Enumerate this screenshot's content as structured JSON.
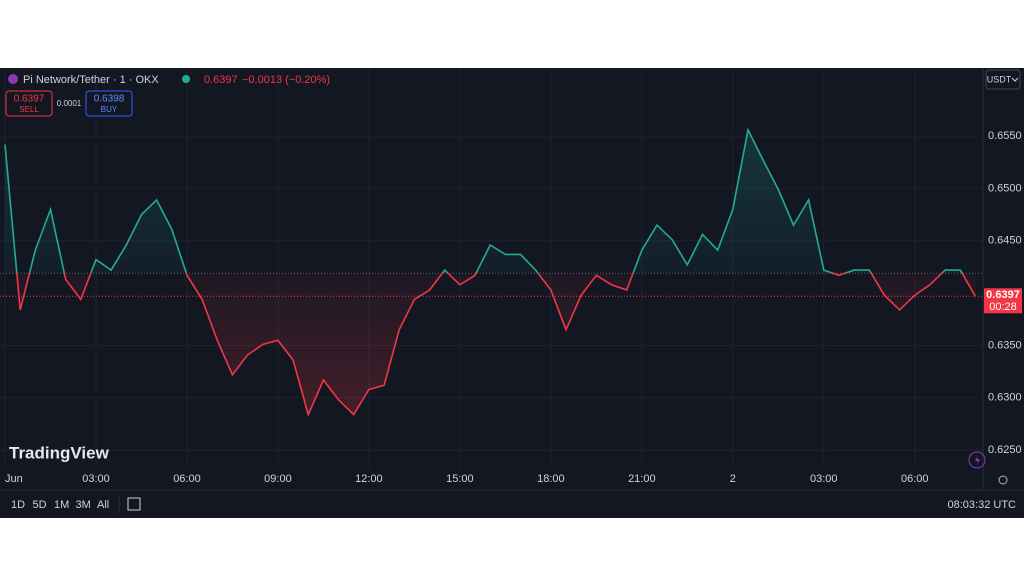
{
  "chart_data": {
    "type": "baseline",
    "up_color": "#22ab94",
    "down_color": "#f23645",
    "baseline": 0.6419,
    "x": [
      0,
      0.5,
      1,
      1.5,
      2,
      2.5,
      3,
      3.5,
      4,
      4.5,
      5,
      5.5,
      6,
      6.5,
      7,
      7.5,
      8,
      8.5,
      9,
      9.5,
      10,
      10.5,
      11,
      11.5,
      12,
      12.5,
      13,
      13.5,
      14,
      14.5,
      15,
      15.5,
      16,
      16.5,
      17,
      17.5,
      18,
      18.5,
      19,
      19.5,
      20,
      20.5,
      21,
      21.5,
      22,
      22.5,
      23,
      23.5,
      24,
      24.5,
      25,
      25.5,
      26,
      26.5,
      27,
      27.5,
      28,
      28.5,
      29,
      29.5,
      30,
      30.5,
      31,
      31.5,
      32
    ],
    "values": [
      0.6542,
      0.6384,
      0.6441,
      0.648,
      0.6413,
      0.6394,
      0.6432,
      0.6422,
      0.6446,
      0.6475,
      0.6489,
      0.6461,
      0.6417,
      0.6394,
      0.6355,
      0.6322,
      0.6341,
      0.6351,
      0.6355,
      0.6336,
      0.6284,
      0.6317,
      0.6298,
      0.6284,
      0.6308,
      0.6312,
      0.6365,
      0.6394,
      0.6403,
      0.6422,
      0.6408,
      0.6417,
      0.6446,
      0.6437,
      0.6437,
      0.6422,
      0.6403,
      0.6365,
      0.6398,
      0.6417,
      0.6408,
      0.6403,
      0.6441,
      0.6465,
      0.6451,
      0.6427,
      0.6456,
      0.6441,
      0.648,
      0.6556,
      0.6527,
      0.6499,
      0.6465,
      0.6489,
      0.6422,
      0.6417,
      0.6422,
      0.6422,
      0.6398,
      0.6384,
      0.6398,
      0.6408,
      0.6422,
      0.6422,
      0.6397
    ],
    "xlim": [
      -0.165,
      32.25
    ],
    "xticks": [
      {
        "value": 0,
        "label": "Jun"
      },
      {
        "value": 3,
        "label": "03:00"
      },
      {
        "value": 6,
        "label": "06:00"
      },
      {
        "value": 9,
        "label": "09:00"
      },
      {
        "value": 12,
        "label": "12:00"
      },
      {
        "value": 15,
        "label": "15:00"
      },
      {
        "value": 18,
        "label": "18:00"
      },
      {
        "value": 21,
        "label": "21:00"
      },
      {
        "value": 24,
        "label": "2"
      },
      {
        "value": 27,
        "label": "03:00"
      },
      {
        "value": 30,
        "label": "06:00"
      }
    ],
    "ylim": [
      0.6233,
      0.6615
    ],
    "yticks": [
      {
        "value": 0.655,
        "label": "0.6550"
      },
      {
        "value": 0.65,
        "label": "0.6500"
      },
      {
        "value": 0.645,
        "label": "0.6450"
      },
      {
        "value": 0.635,
        "label": "0.6350"
      },
      {
        "value": 0.63,
        "label": "0.6300"
      },
      {
        "value": 0.625,
        "label": "0.6250"
      }
    ],
    "grid": true
  },
  "ui": {
    "symbol": "Pi Network/Tether · 1 · OKX",
    "last": "0.6397",
    "change": "−0.0013 (−0.20%)",
    "sell_price": "0.6397",
    "sell": "SELL",
    "spread": "0.0001",
    "buy_price": "0.6398",
    "buy": "BUY",
    "currency": "USDT",
    "countdown": "00:28",
    "logo": "TradingView",
    "ranges": [
      "1D",
      "5D",
      "1M",
      "3M",
      "All"
    ],
    "clock": "08:03:32 UTC"
  }
}
